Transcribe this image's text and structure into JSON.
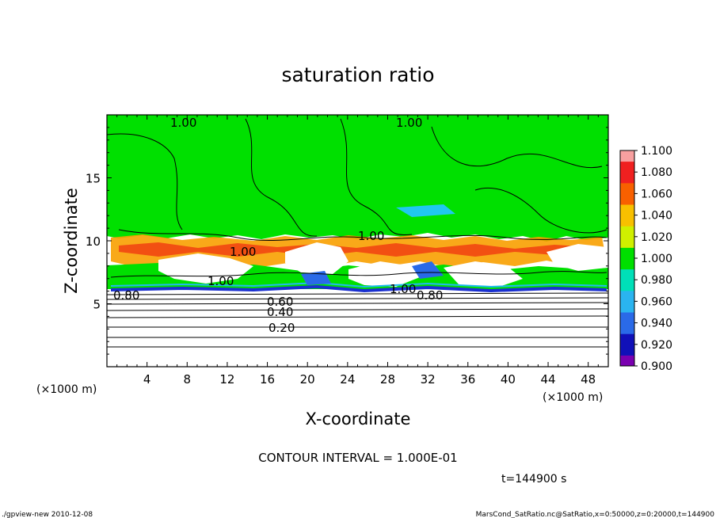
{
  "chart_data": {
    "type": "heatmap",
    "title": "saturation ratio",
    "xlabel": "X-coordinate",
    "ylabel": "Z-coordinate",
    "x_unit": "(×1000 m)",
    "y_unit": "(×1000 m)",
    "xlim": [
      0,
      50
    ],
    "ylim": [
      0,
      20
    ],
    "x_ticks": [
      "4",
      "8",
      "12",
      "16",
      "20",
      "24",
      "28",
      "32",
      "36",
      "40",
      "44",
      "48"
    ],
    "y_ticks": [
      "5",
      "10",
      "15"
    ],
    "colorbar": {
      "ticks": [
        "0.900",
        "0.920",
        "0.940",
        "0.960",
        "0.980",
        "1.000",
        "1.020",
        "1.040",
        "1.060",
        "1.080",
        "1.100"
      ],
      "colors": [
        "#7a00b0",
        "#1010b8",
        "#2a6ae8",
        "#2ab4f0",
        "#00e0b8",
        "#00e000",
        "#d0f000",
        "#f8c000",
        "#f86000",
        "#f02020",
        "#f8a0a0"
      ]
    },
    "contour_labels": [
      "1.00",
      "1.00",
      "1.00",
      "1.00",
      "1.00",
      "1.00",
      "0.80",
      "0.80",
      "0.60",
      "0.40",
      "0.20"
    ],
    "contour_interval": "CONTOUR INTERVAL = 1.000E-01",
    "time": "t=144900 s"
  },
  "footer": {
    "left": "./gpview-new 2010-12-08",
    "right": "MarsCond_SatRatio.nc@SatRatio,x=0:50000,z=0:20000,t=144900"
  }
}
